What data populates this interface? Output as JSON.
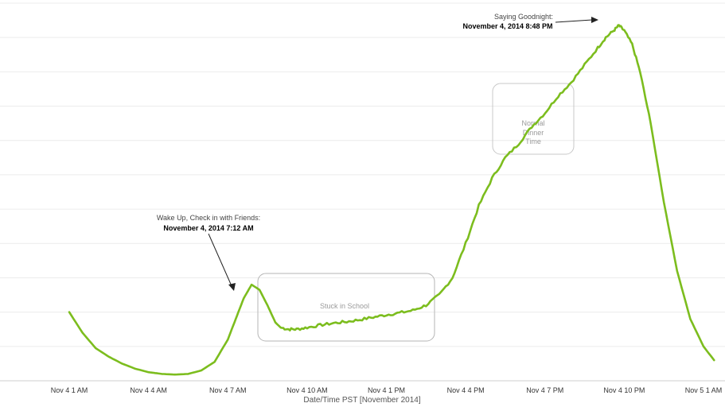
{
  "chart_data": {
    "type": "line",
    "title": "",
    "xlabel": "Date/Time PST [November 2014]",
    "ylabel": "",
    "grid": "horizontal",
    "x_ticks": [
      "Nov 4 1 AM",
      "Nov 4 4 AM",
      "Nov 4 7 AM",
      "Nov 4 10 AM",
      "Nov 4 1 PM",
      "Nov 4 4 PM",
      "Nov 4 7 PM",
      "Nov 4 10 PM",
      "Nov 5 1 AM"
    ],
    "x_tick_hours": [
      1,
      4,
      7,
      10,
      13,
      16,
      19,
      22,
      25
    ],
    "ylim": [
      0,
      11
    ],
    "x_unit": "hours since Nov 4 12 AM PST",
    "series": [
      {
        "name": "",
        "color": "#7cbd1e",
        "x": [
          0.0,
          0.5,
          1.0,
          1.5,
          2.0,
          2.5,
          3.0,
          3.5,
          4.0,
          4.5,
          5.0,
          5.5,
          6.0,
          6.3,
          6.6,
          6.9,
          7.2,
          7.5,
          7.8,
          8.0,
          8.3,
          8.6,
          9.0,
          9.5,
          10.0,
          10.5,
          11.0,
          11.5,
          12.0,
          12.5,
          13.0,
          13.5,
          14.0,
          14.5,
          15.0,
          15.5,
          16.0,
          16.5,
          17.0,
          17.5,
          18.0,
          18.5,
          19.0,
          19.5,
          20.0,
          20.3,
          20.6,
          20.8,
          21.0,
          21.3,
          21.6,
          22.0,
          22.5,
          23.0,
          23.5,
          24.0,
          24.4
        ],
        "y": [
          2.0,
          1.4,
          0.95,
          0.7,
          0.5,
          0.35,
          0.25,
          0.2,
          0.18,
          0.2,
          0.3,
          0.55,
          1.2,
          1.8,
          2.4,
          2.8,
          2.65,
          2.2,
          1.7,
          1.55,
          1.5,
          1.5,
          1.55,
          1.62,
          1.68,
          1.72,
          1.78,
          1.85,
          1.92,
          1.98,
          2.05,
          2.2,
          2.5,
          3.0,
          4.0,
          5.1,
          5.9,
          6.5,
          6.9,
          7.4,
          7.8,
          8.3,
          8.7,
          9.2,
          9.7,
          10.0,
          10.2,
          10.35,
          10.2,
          9.8,
          9.0,
          7.5,
          5.2,
          3.2,
          1.8,
          1.0,
          0.6
        ]
      }
    ],
    "annotations": [
      {
        "label": "Wake Up, Check in with Friends:",
        "detail": "November 4, 2014 7:12 AM"
      },
      {
        "label": "Saying Goodnight:",
        "detail": "November 4, 2014 8:48 PM"
      }
    ],
    "regions": [
      {
        "label": "Stuck in School"
      },
      {
        "label": "Normal Dinner Time",
        "lines": [
          "Normal",
          "Dinner",
          "Time"
        ]
      }
    ]
  }
}
